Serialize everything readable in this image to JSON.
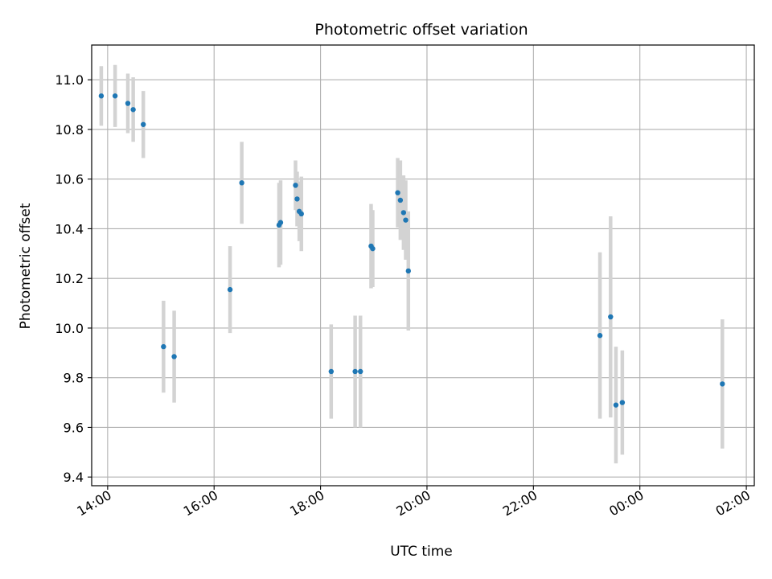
{
  "chart_data": {
    "type": "scatter",
    "title": "Photometric offset variation",
    "xlabel": "UTC time",
    "ylabel": "Photometric offset",
    "x_unit": "hours since 00:00 of first day",
    "xlim": [
      13.7,
      26.15
    ],
    "ylim": [
      9.365,
      11.14
    ],
    "x_ticks": [
      {
        "value": 14,
        "label": "14:00"
      },
      {
        "value": 16,
        "label": "16:00"
      },
      {
        "value": 18,
        "label": "18:00"
      },
      {
        "value": 20,
        "label": "20:00"
      },
      {
        "value": 22,
        "label": "22:00"
      },
      {
        "value": 24,
        "label": "00:00"
      },
      {
        "value": 26,
        "label": "02:00"
      }
    ],
    "y_ticks": [
      {
        "value": 9.4,
        "label": "9.4"
      },
      {
        "value": 9.6,
        "label": "9.6"
      },
      {
        "value": 9.8,
        "label": "9.8"
      },
      {
        "value": 10.0,
        "label": "10.0"
      },
      {
        "value": 10.2,
        "label": "10.2"
      },
      {
        "value": 10.4,
        "label": "10.4"
      },
      {
        "value": 10.6,
        "label": "10.6"
      },
      {
        "value": 10.8,
        "label": "10.8"
      },
      {
        "value": 11.0,
        "label": "11.0"
      }
    ],
    "grid": true,
    "point_color": "#1f77b4",
    "errorbar_color": "#d3d3d3",
    "points": [
      {
        "x": 13.88,
        "y": 10.935,
        "err": 0.12
      },
      {
        "x": 14.14,
        "y": 10.935,
        "err": 0.125
      },
      {
        "x": 14.38,
        "y": 10.905,
        "err": 0.12
      },
      {
        "x": 14.48,
        "y": 10.88,
        "err": 0.13
      },
      {
        "x": 14.67,
        "y": 10.82,
        "err": 0.135
      },
      {
        "x": 15.05,
        "y": 9.925,
        "err": 0.185
      },
      {
        "x": 15.25,
        "y": 9.885,
        "err": 0.185
      },
      {
        "x": 16.3,
        "y": 10.155,
        "err": 0.175
      },
      {
        "x": 16.52,
        "y": 10.585,
        "err": 0.165
      },
      {
        "x": 17.22,
        "y": 10.415,
        "err": 0.17
      },
      {
        "x": 17.25,
        "y": 10.425,
        "err": 0.17
      },
      {
        "x": 17.53,
        "y": 10.575,
        "err": 0.1
      },
      {
        "x": 17.56,
        "y": 10.52,
        "err": 0.11
      },
      {
        "x": 17.6,
        "y": 10.47,
        "err": 0.12
      },
      {
        "x": 17.64,
        "y": 10.46,
        "err": 0.15
      },
      {
        "x": 18.2,
        "y": 9.825,
        "err": 0.19
      },
      {
        "x": 18.65,
        "y": 9.825,
        "err": 0.225
      },
      {
        "x": 18.75,
        "y": 9.825,
        "err": 0.225
      },
      {
        "x": 18.95,
        "y": 10.33,
        "err": 0.17
      },
      {
        "x": 18.98,
        "y": 10.32,
        "err": 0.155
      },
      {
        "x": 19.45,
        "y": 10.545,
        "err": 0.14
      },
      {
        "x": 19.5,
        "y": 10.515,
        "err": 0.16
      },
      {
        "x": 19.56,
        "y": 10.465,
        "err": 0.15
      },
      {
        "x": 19.6,
        "y": 10.435,
        "err": 0.16
      },
      {
        "x": 19.65,
        "y": 10.23,
        "err": 0.24
      },
      {
        "x": 23.25,
        "y": 9.97,
        "err": 0.335
      },
      {
        "x": 23.45,
        "y": 10.045,
        "err": 0.405
      },
      {
        "x": 23.55,
        "y": 9.69,
        "err": 0.235
      },
      {
        "x": 23.67,
        "y": 9.7,
        "err": 0.21
      },
      {
        "x": 25.55,
        "y": 9.775,
        "err": 0.26
      }
    ]
  }
}
